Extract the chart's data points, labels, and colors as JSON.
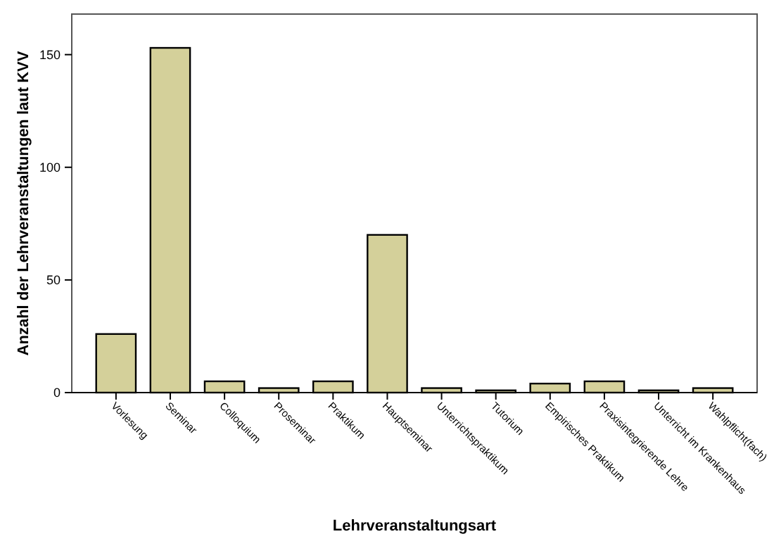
{
  "chart_data": {
    "type": "bar",
    "xlabel": "Lehrveranstaltungsart",
    "ylabel": "Anzahl der Lehrveranstaltungen laut KVV",
    "categories": [
      "Vorlesung",
      "Seminar",
      "Colloquium",
      "Proseminar",
      "Praktikum",
      "Hauptseminar",
      "Unterrichtspraktikum",
      "Tutorium",
      "Empirisches Praktikum",
      "Praxisintegrierende Lehre",
      "Unterricht im Krankenhaus",
      "Wahlpflicht(fach)"
    ],
    "values": [
      26,
      153,
      5,
      2,
      5,
      70,
      2,
      1,
      4,
      5,
      1,
      2
    ],
    "color": "#d4d09a",
    "ylim": [
      0,
      168
    ],
    "yticks": [
      0,
      50,
      100,
      150
    ],
    "grid": false
  }
}
